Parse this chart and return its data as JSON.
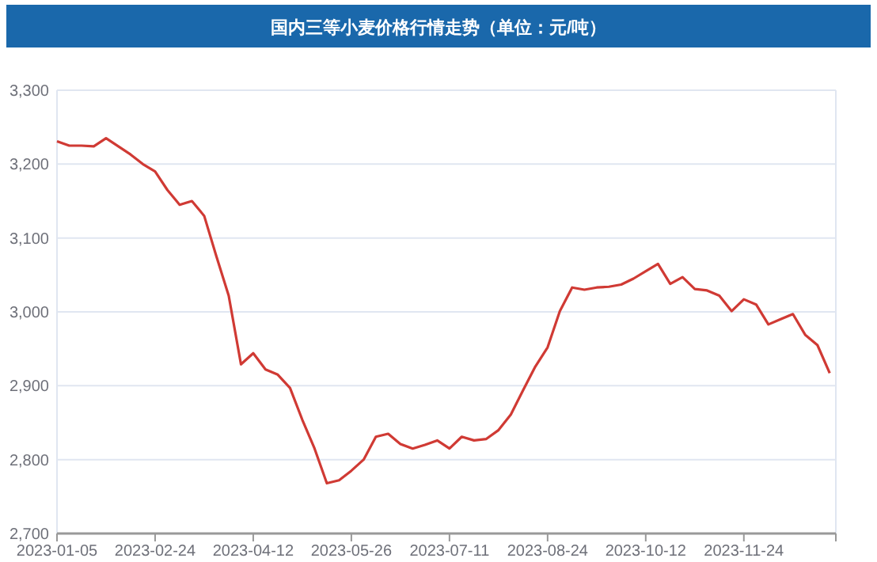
{
  "chart_data": {
    "type": "line",
    "title": "国内三等小麦价格行情走势（单位：元/吨）",
    "categories": [
      "2023-01-05",
      null,
      null,
      null,
      null,
      null,
      null,
      null,
      "2023-02-24",
      null,
      null,
      null,
      null,
      null,
      null,
      null,
      "2023-04-12",
      null,
      null,
      null,
      null,
      null,
      null,
      null,
      "2023-05-26",
      null,
      null,
      null,
      null,
      null,
      null,
      null,
      "2023-07-11",
      null,
      null,
      null,
      null,
      null,
      null,
      null,
      "2023-08-24",
      null,
      null,
      null,
      null,
      null,
      null,
      null,
      "2023-10-12",
      null,
      null,
      null,
      null,
      null,
      null,
      null,
      "2023-11-24",
      null,
      null,
      null,
      null,
      null,
      null,
      null
    ],
    "series": [
      {
        "color": "#d03a34",
        "values": [
          3231,
          3225,
          3225,
          3224,
          3235,
          3224,
          3213,
          3200,
          3190,
          3165,
          3145,
          3150,
          3130,
          3075,
          3022,
          2929,
          2944,
          2922,
          2915,
          2897,
          2854,
          2815,
          2768,
          2772,
          2785,
          2800,
          2831,
          2835,
          2821,
          2815,
          2820,
          2826,
          2815,
          2831,
          2826,
          2828,
          2840,
          2861,
          2894,
          2926,
          2952,
          3001,
          3033,
          3030,
          3033,
          3034,
          3037,
          3045,
          3055,
          3065,
          3038,
          3047,
          3031,
          3029,
          3022,
          3001,
          3017,
          3010,
          2983,
          2990,
          2997,
          2969,
          2955,
          2917
        ]
      }
    ],
    "ylim": [
      2700,
      3300
    ],
    "yticks": [
      {
        "value": 2700,
        "label": "2,700"
      },
      {
        "value": 2800,
        "label": "2,800"
      },
      {
        "value": 2900,
        "label": "2,900"
      },
      {
        "value": 3000,
        "label": "3,000"
      },
      {
        "value": 3100,
        "label": "3,100"
      },
      {
        "value": 3200,
        "label": "3,200"
      },
      {
        "value": 3300,
        "label": "3,300"
      }
    ],
    "grid": "y",
    "line_style": "solid"
  }
}
